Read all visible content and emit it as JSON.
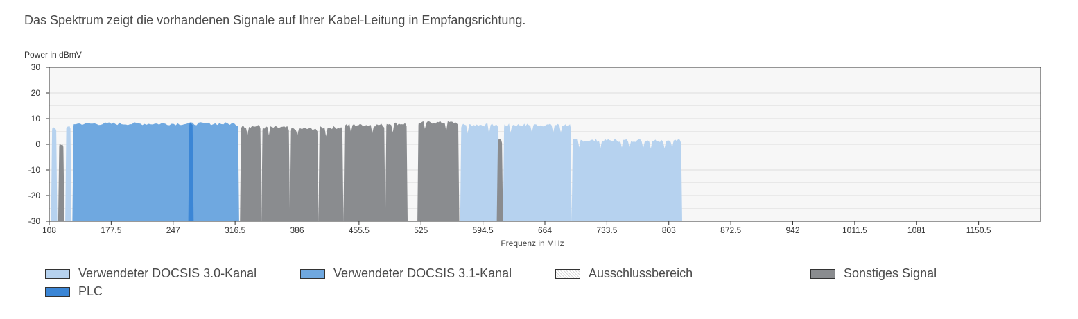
{
  "intro": "Das Spektrum zeigt die vorhandenen Signale auf Ihrer Kabel-Leitung in Empfangsrichtung.",
  "chart_data": {
    "type": "area",
    "title": "",
    "ylabel": "Power in dBmV",
    "xlabel": "Frequenz in MHz",
    "xlim": [
      108,
      1220
    ],
    "ylim": [
      -30,
      30
    ],
    "x_ticks": [
      "108",
      "177.5",
      "247",
      "316.5",
      "386",
      "455.5",
      "525",
      "594.5",
      "664",
      "733.5",
      "803",
      "872.5",
      "942",
      "1011.5",
      "1081",
      "1150.5"
    ],
    "y_ticks": [
      "30",
      "20",
      "10",
      "0",
      "-10",
      "-20",
      "-30"
    ],
    "colors": {
      "d30": "#b6d2ef",
      "d31": "#6fa8e0",
      "other": "#8a8c8f",
      "plc": "#3b86d6",
      "excl": "#e6e6e6"
    },
    "series": [
      {
        "name": "Verwendeter DOCSIS 3.0-Kanal",
        "kind": "d30",
        "segments": [
          [
            110,
            117,
            6.5
          ],
          [
            126,
            133,
            7
          ],
          [
            569,
            613,
            7.5
          ],
          [
            617,
            694,
            7.5
          ],
          [
            694,
            818,
            1.5
          ]
        ]
      },
      {
        "name": "Verwendeter DOCSIS 3.1-Kanal",
        "kind": "d31",
        "segments": [
          [
            134,
            321,
            8
          ]
        ]
      },
      {
        "name": "Ausschlussbereich",
        "kind": "excl",
        "segments": []
      },
      {
        "name": "Sonstiges Signal",
        "kind": "other",
        "segments": [
          [
            118,
            125,
            0
          ],
          [
            322,
            346,
            7
          ],
          [
            346,
            378,
            6.5
          ],
          [
            378,
            410,
            6
          ],
          [
            410,
            438,
            6.5
          ],
          [
            438,
            485,
            7.5
          ],
          [
            485,
            510,
            8
          ],
          [
            521,
            568,
            8.5
          ],
          [
            610,
            617,
            1.5
          ]
        ]
      },
      {
        "name": "PLC",
        "kind": "plc",
        "segments": [
          [
            264,
            270,
            8.5
          ]
        ]
      }
    ],
    "legend_position": "bottom"
  }
}
